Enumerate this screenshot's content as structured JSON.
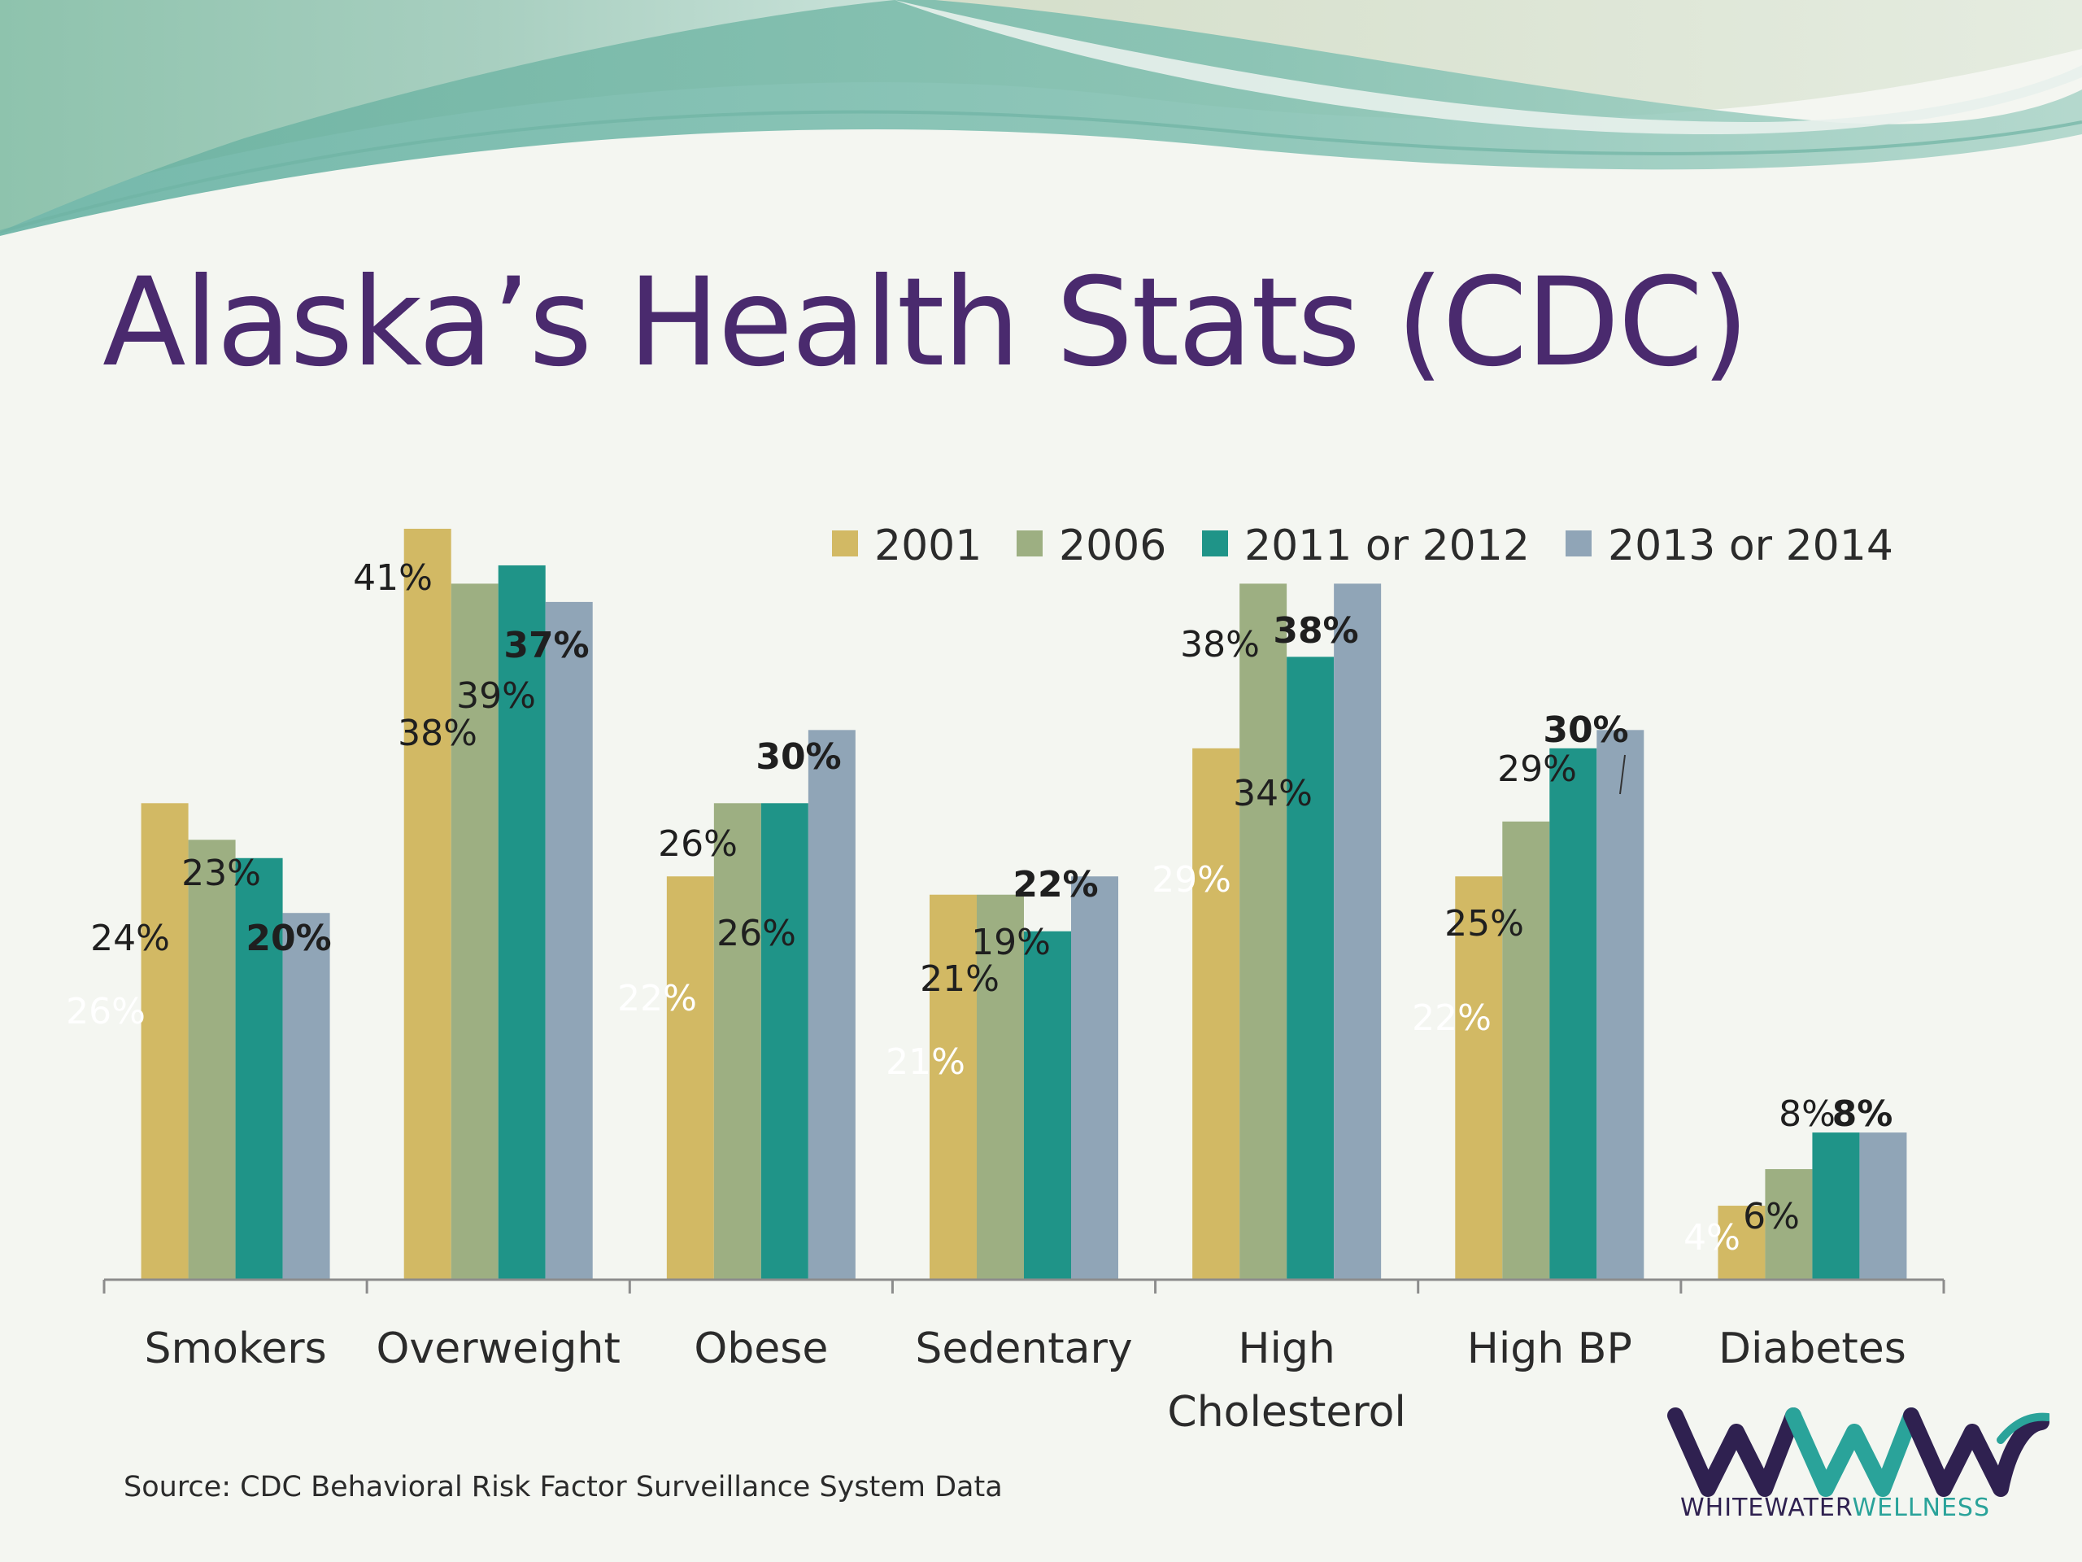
{
  "slide": {
    "title": "Alaska’s Health Stats (CDC)",
    "source": "Source: CDC Behavioral Risk Factor Surveillance System Data",
    "logo_word_1": "WHITEWATER",
    "logo_word_2": "WELLNESS",
    "title_color": "#4a2a6e"
  },
  "chart_data": {
    "type": "bar",
    "categories": [
      "Smokers",
      "Overweight",
      "Obese",
      "Sedentary",
      "High Cholesterol",
      "High BP",
      "Diabetes"
    ],
    "category_lines": [
      [
        "Smokers"
      ],
      [
        "Overweight"
      ],
      [
        "Obese"
      ],
      [
        "Sedentary"
      ],
      [
        "High",
        "Cholesterol"
      ],
      [
        "High BP"
      ],
      [
        "Diabetes"
      ]
    ],
    "series": [
      {
        "name": "2001",
        "color": "#d2b964",
        "values": [
          26,
          41,
          22,
          21,
          29,
          22,
          4
        ],
        "labels": [
          "26%",
          "41%",
          "22%",
          "21%",
          "29%",
          "22%",
          "4%"
        ]
      },
      {
        "name": "2006",
        "color": "#9daf82",
        "values": [
          24,
          38,
          26,
          21,
          38,
          25,
          6
        ],
        "labels": [
          "24%",
          "38%",
          "26%",
          "21%",
          "38%",
          "25%",
          "6%"
        ]
      },
      {
        "name": "2011 or 2012",
        "color": "#1f9488",
        "values": [
          23,
          39,
          26,
          19,
          34,
          29,
          8
        ],
        "labels": [
          "23%",
          "39%",
          "26%",
          "19%",
          "34%",
          "29%",
          "8%"
        ]
      },
      {
        "name": "2013 or 2014",
        "color": "#90a5b7",
        "values": [
          20,
          37,
          30,
          22,
          38,
          30,
          8
        ],
        "labels": [
          "20%",
          "37%",
          "30%",
          "22%",
          "38%",
          "30%",
          "8%"
        ]
      }
    ],
    "bold_series": "2013 or 2014",
    "ylim": [
      0,
      45
    ],
    "grid": false,
    "legend_position": "top-right",
    "xlabel": "",
    "ylabel": ""
  }
}
